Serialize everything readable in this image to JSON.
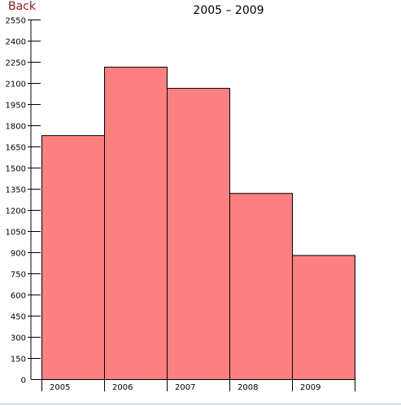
{
  "nav": {
    "back_label": "Back"
  },
  "chart_data": {
    "type": "bar",
    "title": "2005 – 2009",
    "xlabel": "",
    "ylabel": "",
    "categories": [
      "2005",
      "2006",
      "2007",
      "2008",
      "2009"
    ],
    "values": [
      1730,
      2215,
      2065,
      1320,
      880
    ],
    "ylim": [
      0,
      2550
    ],
    "yticks": [
      "0",
      "150",
      "300",
      "450",
      "600",
      "750",
      "900",
      "1050",
      "1200",
      "1350",
      "1500",
      "1650",
      "1800",
      "1950",
      "2100",
      "2250",
      "2400",
      "2550"
    ],
    "bar_color": "#ff8080",
    "bar_stroke": "#000000",
    "grid": false,
    "legend": "none"
  }
}
